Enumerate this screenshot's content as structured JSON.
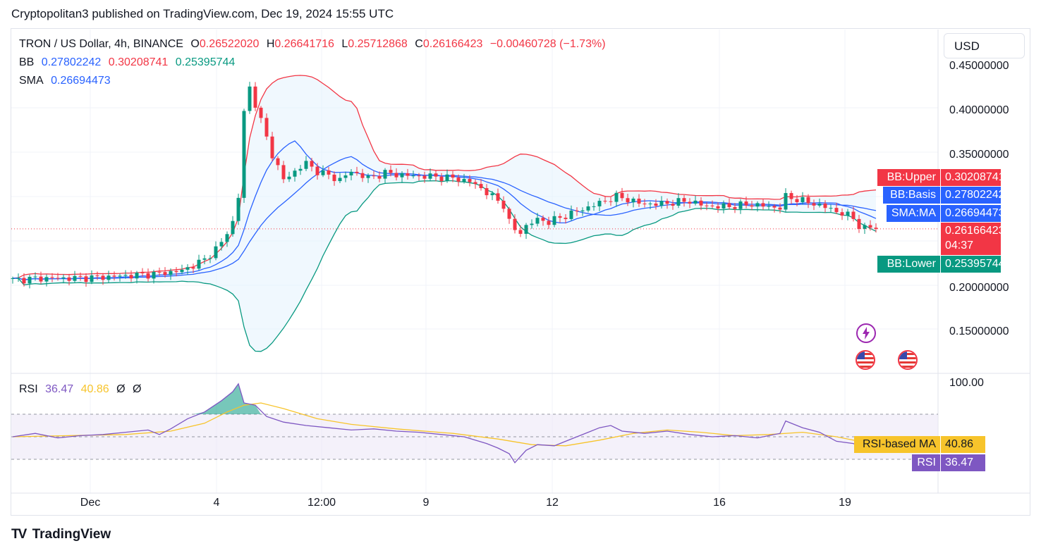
{
  "header": {
    "publisher_line": "Cryptopolitan3 published on TradingView.com, Dec 19, 2024 15:55 UTC"
  },
  "legend": {
    "symbol": "TRON / US Dollar, 4h, BINANCE",
    "o_label": "O",
    "o_value": "0.26522020",
    "h_label": "H",
    "h_value": "0.26641716",
    "l_label": "L",
    "l_value": "0.25712868",
    "c_label": "C",
    "c_value": "0.26166423",
    "change": "−0.00460728 (−1.73%)",
    "bb_label": "BB",
    "bb_basis": "0.27802242",
    "bb_upper": "0.30208741",
    "bb_lower": "0.25395744",
    "sma_label": "SMA",
    "sma_value": "0.26694473",
    "rsi_label": "RSI",
    "rsi_value": "36.47",
    "rsi_ma": "40.86",
    "rsi_extra1": "Ø",
    "rsi_extra2": "Ø"
  },
  "toolbar": {
    "currency": "USD"
  },
  "price_axis": {
    "ticks": [
      "0.45000000",
      "0.40000000",
      "0.35000000",
      "0.20000000",
      "0.15000000"
    ]
  },
  "rsi_axis": {
    "top_tick": "100.00"
  },
  "tags": {
    "bb_upper_name": "BB:Upper",
    "bb_upper_value": "0.30208741",
    "bb_basis_name": "BB:Basis",
    "bb_basis_value": "0.27802242",
    "sma_name": "SMA:MA",
    "sma_value": "0.26694473",
    "last_value": "0.26166423",
    "countdown": "04:37",
    "bb_lower_name": "BB:Lower",
    "bb_lower_value": "0.25395744",
    "rsi_ma_name": "RSI-based MA",
    "rsi_ma_value": "40.86",
    "rsi_name": "RSI",
    "rsi_value": "36.47"
  },
  "time_axis": {
    "labels": [
      "Dec",
      "4",
      "12:00",
      "9",
      "12",
      "16",
      "19"
    ]
  },
  "footer": {
    "brand": "TradingView",
    "logo": "TV"
  },
  "colors": {
    "up": "#089981",
    "down": "#f23645",
    "bb_upper": "#f23645",
    "bb_basis": "#2962ff",
    "bb_lower": "#089981",
    "bb_fill": "#e3f2fd",
    "sma": "#2962ff",
    "rsi": "#7e57c2",
    "rsi_ma": "#f7c42b",
    "rsi_band": "#ede7f6",
    "text_muted": "#131722"
  },
  "chart_data": [
    {
      "type": "candlestick",
      "title": "TRON / US Dollar, 4h, BINANCE",
      "x_labels": [
        "Dec",
        "4",
        "12:00",
        "9",
        "12",
        "16",
        "19"
      ],
      "ylim": [
        0.09,
        0.46
      ],
      "last": {
        "open": 0.2652202,
        "high": 0.26641716,
        "low": 0.25712868,
        "close": 0.26166423
      },
      "close_path": [
        [
          0,
          0.201
        ],
        [
          5,
          0.203
        ],
        [
          10,
          0.203
        ],
        [
          15,
          0.204
        ],
        [
          20,
          0.206
        ],
        [
          25,
          0.208
        ],
        [
          30,
          0.212
        ],
        [
          34,
          0.225
        ],
        [
          37,
          0.245
        ],
        [
          39,
          0.27
        ],
        [
          40,
          0.3
        ],
        [
          41,
          0.4
        ],
        [
          42,
          0.43
        ],
        [
          43,
          0.41
        ],
        [
          44,
          0.39
        ],
        [
          45,
          0.37
        ],
        [
          46,
          0.35
        ],
        [
          47,
          0.335
        ],
        [
          48,
          0.32
        ],
        [
          50,
          0.33
        ],
        [
          52,
          0.34
        ],
        [
          54,
          0.33
        ],
        [
          56,
          0.325
        ],
        [
          58,
          0.32
        ],
        [
          60,
          0.33
        ],
        [
          63,
          0.322
        ],
        [
          66,
          0.328
        ],
        [
          70,
          0.325
        ],
        [
          74,
          0.324
        ],
        [
          78,
          0.322
        ],
        [
          81,
          0.318
        ],
        [
          83,
          0.31
        ],
        [
          85,
          0.3
        ],
        [
          87,
          0.29
        ],
        [
          88,
          0.27
        ],
        [
          89,
          0.26
        ],
        [
          90,
          0.258
        ],
        [
          91,
          0.265
        ],
        [
          93,
          0.273
        ],
        [
          95,
          0.27
        ],
        [
          97,
          0.275
        ],
        [
          99,
          0.28
        ],
        [
          101,
          0.285
        ],
        [
          103,
          0.29
        ],
        [
          105,
          0.295
        ],
        [
          107,
          0.3
        ],
        [
          109,
          0.297
        ],
        [
          111,
          0.292
        ],
        [
          114,
          0.291
        ],
        [
          117,
          0.293
        ],
        [
          120,
          0.295
        ],
        [
          122,
          0.29
        ],
        [
          125,
          0.288
        ],
        [
          128,
          0.289
        ],
        [
          131,
          0.291
        ],
        [
          134,
          0.288
        ],
        [
          136,
          0.287
        ],
        [
          137,
          0.3
        ],
        [
          139,
          0.297
        ],
        [
          141,
          0.293
        ],
        [
          143,
          0.29
        ],
        [
          145,
          0.285
        ],
        [
          147,
          0.28
        ],
        [
          149,
          0.275
        ],
        [
          150,
          0.265
        ],
        [
          151,
          0.262
        ],
        [
          152,
          0.264
        ],
        [
          153,
          0.262
        ]
      ],
      "series": [
        {
          "name": "BB",
          "role": "upper",
          "last": 0.30208741
        },
        {
          "name": "BB",
          "role": "basis",
          "last": 0.27802242
        },
        {
          "name": "BB",
          "role": "lower",
          "last": 0.25395744
        },
        {
          "name": "SMA",
          "last": 0.26694473
        }
      ]
    },
    {
      "type": "line",
      "title": "RSI",
      "ylim": [
        0,
        100
      ],
      "bands": [
        30,
        50,
        70
      ],
      "series": [
        {
          "name": "RSI",
          "last": 36.47,
          "values": [
            [
              0,
              50
            ],
            [
              4,
              53
            ],
            [
              8,
              49
            ],
            [
              12,
              51
            ],
            [
              16,
              52
            ],
            [
              20,
              54
            ],
            [
              24,
              56
            ],
            [
              26,
              52
            ],
            [
              28,
              57
            ],
            [
              31,
              66
            ],
            [
              34,
              72
            ],
            [
              37,
              82
            ],
            [
              39,
              90
            ],
            [
              40,
              97
            ],
            [
              41,
              80
            ],
            [
              43,
              78
            ],
            [
              45,
              68
            ],
            [
              48,
              63
            ],
            [
              52,
              60
            ],
            [
              56,
              58
            ],
            [
              60,
              56
            ],
            [
              64,
              57
            ],
            [
              68,
              55
            ],
            [
              72,
              54
            ],
            [
              76,
              52
            ],
            [
              80,
              50
            ],
            [
              84,
              44
            ],
            [
              86,
              40
            ],
            [
              88,
              35
            ],
            [
              89,
              27
            ],
            [
              91,
              38
            ],
            [
              93,
              43
            ],
            [
              96,
              42
            ],
            [
              98,
              46
            ],
            [
              100,
              50
            ],
            [
              102,
              54
            ],
            [
              104,
              58
            ],
            [
              106,
              60
            ],
            [
              108,
              55
            ],
            [
              112,
              53
            ],
            [
              116,
              55
            ],
            [
              120,
              52
            ],
            [
              124,
              50
            ],
            [
              128,
              51
            ],
            [
              132,
              49
            ],
            [
              136,
              53
            ],
            [
              137,
              64
            ],
            [
              140,
              58
            ],
            [
              143,
              54
            ],
            [
              146,
              46
            ],
            [
              149,
              44
            ],
            [
              151,
              38
            ],
            [
              153,
              36.47
            ]
          ]
        },
        {
          "name": "RSI-based MA",
          "last": 40.86,
          "values": [
            [
              0,
              50
            ],
            [
              10,
              51
            ],
            [
              20,
              52
            ],
            [
              28,
              55
            ],
            [
              34,
              62
            ],
            [
              38,
              72
            ],
            [
              41,
              78
            ],
            [
              44,
              80
            ],
            [
              48,
              75
            ],
            [
              54,
              66
            ],
            [
              60,
              61
            ],
            [
              68,
              57
            ],
            [
              78,
              53
            ],
            [
              86,
              48
            ],
            [
              92,
              43
            ],
            [
              98,
              42
            ],
            [
              104,
              47
            ],
            [
              110,
              53
            ],
            [
              116,
              56
            ],
            [
              122,
              54
            ],
            [
              128,
              51
            ],
            [
              134,
              52
            ],
            [
              140,
              54
            ],
            [
              146,
              50
            ],
            [
              150,
              46
            ],
            [
              153,
              40.86
            ]
          ]
        }
      ]
    }
  ]
}
